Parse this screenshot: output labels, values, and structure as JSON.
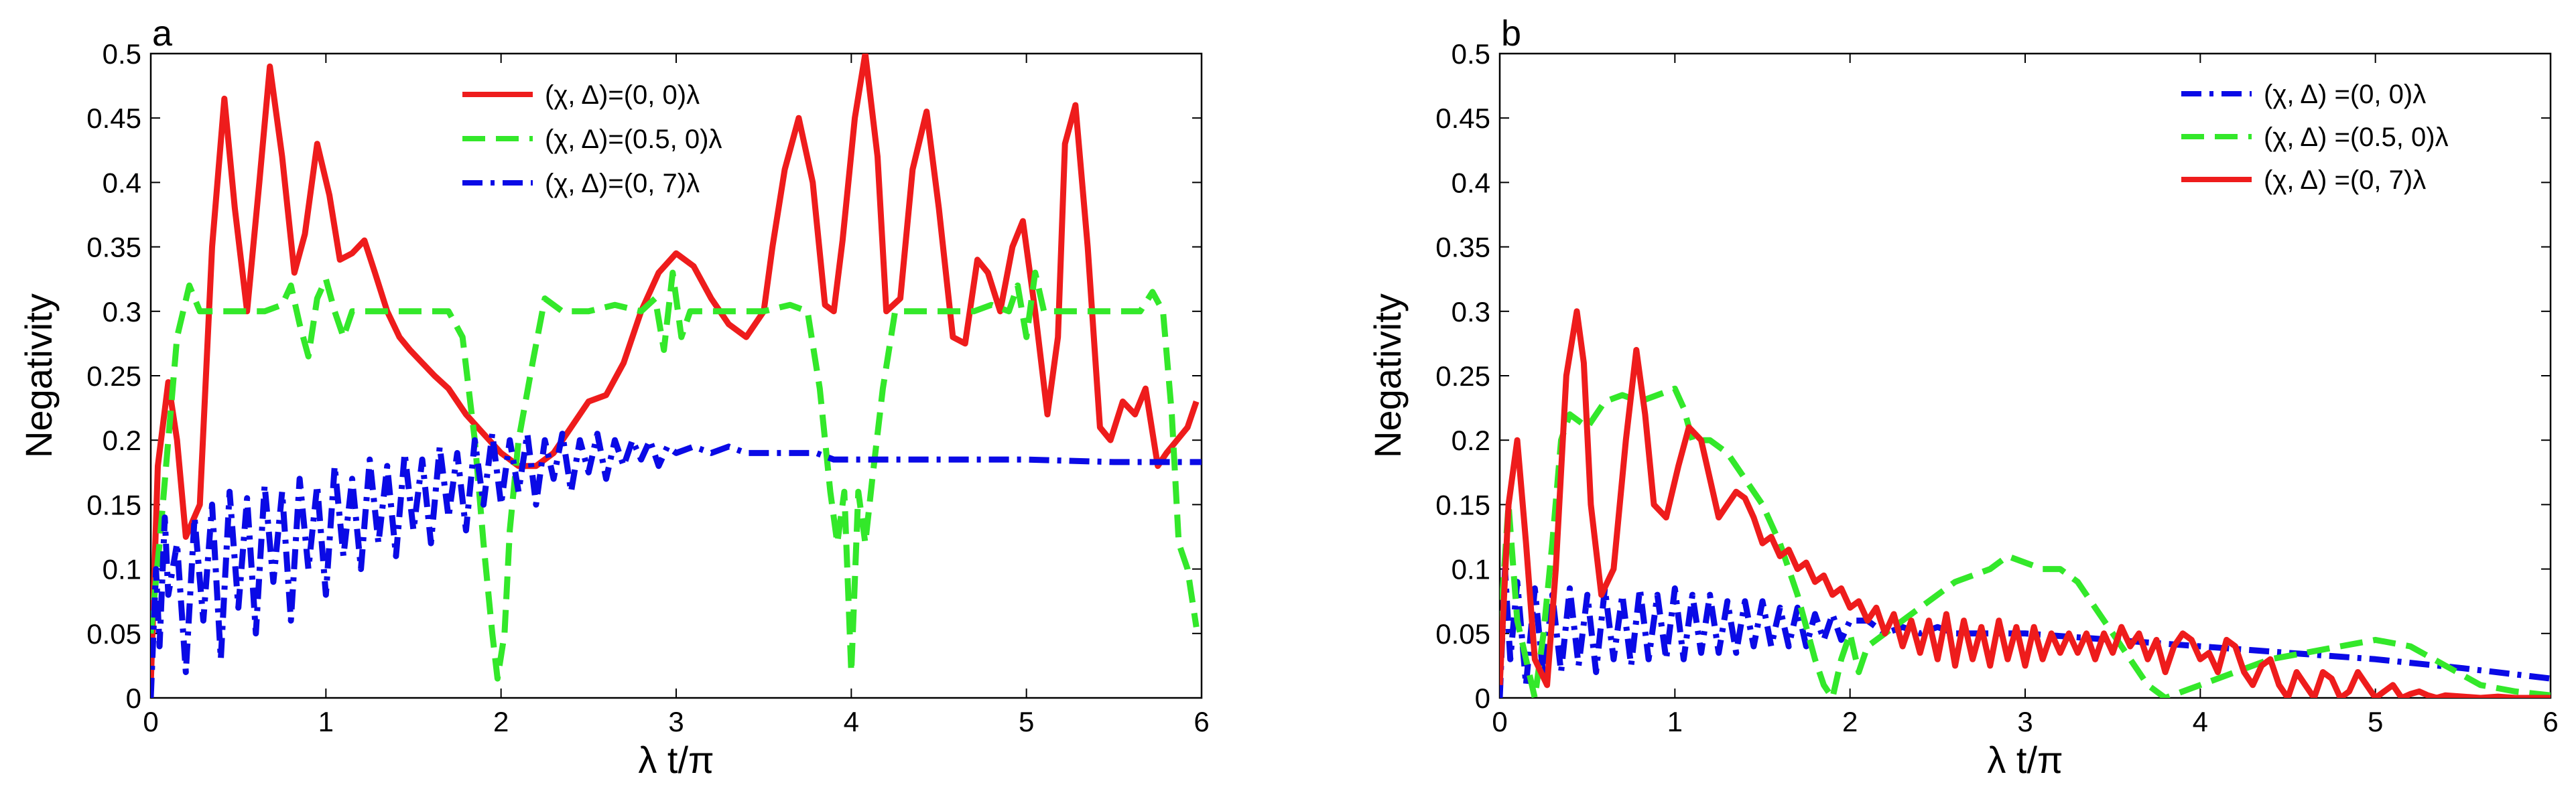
{
  "colors": {
    "red": "#ee1c1c",
    "green": "#33e82a",
    "blue": "#0a0ae6"
  },
  "chart_data": [
    {
      "type": "line",
      "panel_label": "a",
      "xlabel": "λ t/π",
      "ylabel": "Negativity",
      "xlim": [
        0,
        6
      ],
      "ylim": [
        0,
        0.5
      ],
      "xticks": [
        "0",
        "1",
        "2",
        "3",
        "4",
        "5",
        "6"
      ],
      "yticks": [
        "0",
        "0.05",
        "0.1",
        "0.15",
        "0.2",
        "0.25",
        "0.3",
        "0.35",
        "0.4",
        "0.45",
        "0.5"
      ],
      "legend_position": "top-center",
      "series": [
        {
          "name": "(χ, Δ)=(0, 0)λ",
          "color": "#ee1c1c",
          "style": "solid",
          "x": [
            0,
            0.04,
            0.1,
            0.15,
            0.2,
            0.28,
            0.35,
            0.42,
            0.48,
            0.55,
            0.62,
            0.68,
            0.75,
            0.82,
            0.88,
            0.95,
            1.02,
            1.08,
            1.15,
            1.22,
            1.28,
            1.35,
            1.42,
            1.48,
            1.55,
            1.62,
            1.7,
            1.8,
            1.9,
            2.0,
            2.1,
            2.2,
            2.3,
            2.4,
            2.5,
            2.6,
            2.7,
            2.8,
            2.9,
            3.0,
            3.1,
            3.2,
            3.3,
            3.4,
            3.5,
            3.55,
            3.62,
            3.7,
            3.78,
            3.85,
            3.9,
            3.95,
            4.02,
            4.08,
            4.15,
            4.2,
            4.28,
            4.35,
            4.43,
            4.5,
            4.58,
            4.65,
            4.72,
            4.78,
            4.85,
            4.92,
            4.98,
            5.05,
            5.12,
            5.18,
            5.22,
            5.28,
            5.35,
            5.42,
            5.48,
            5.55,
            5.62,
            5.68,
            5.75,
            5.8,
            5.86,
            5.92,
            5.97
          ],
          "y": [
            0.01,
            0.18,
            0.245,
            0.2,
            0.125,
            0.15,
            0.35,
            0.465,
            0.38,
            0.3,
            0.4,
            0.49,
            0.42,
            0.33,
            0.36,
            0.43,
            0.39,
            0.34,
            0.345,
            0.355,
            0.33,
            0.3,
            0.28,
            0.27,
            0.26,
            0.25,
            0.24,
            0.22,
            0.205,
            0.19,
            0.18,
            0.18,
            0.19,
            0.21,
            0.23,
            0.235,
            0.26,
            0.3,
            0.33,
            0.345,
            0.335,
            0.31,
            0.29,
            0.28,
            0.3,
            0.35,
            0.41,
            0.45,
            0.4,
            0.305,
            0.3,
            0.355,
            0.45,
            0.5,
            0.42,
            0.3,
            0.31,
            0.41,
            0.455,
            0.38,
            0.28,
            0.275,
            0.34,
            0.33,
            0.3,
            0.35,
            0.37,
            0.3,
            0.22,
            0.28,
            0.43,
            0.46,
            0.35,
            0.21,
            0.2,
            0.23,
            0.22,
            0.24,
            0.18,
            0.19,
            0.2,
            0.21,
            0.23
          ]
        },
        {
          "name": "(χ, Δ)=(0.5, 0)λ",
          "color": "#33e82a",
          "style": "dashed",
          "x": [
            0,
            0.05,
            0.1,
            0.15,
            0.22,
            0.28,
            0.35,
            0.45,
            0.55,
            0.65,
            0.75,
            0.8,
            0.85,
            0.9,
            0.95,
            1.0,
            1.05,
            1.1,
            1.15,
            1.2,
            1.3,
            1.4,
            1.5,
            1.6,
            1.7,
            1.78,
            1.85,
            1.9,
            1.95,
            1.98,
            2.02,
            2.05,
            2.1,
            2.18,
            2.25,
            2.35,
            2.5,
            2.65,
            2.8,
            2.88,
            2.93,
            2.98,
            3.03,
            3.08,
            3.15,
            3.3,
            3.5,
            3.65,
            3.75,
            3.82,
            3.88,
            3.92,
            3.96,
            4.0,
            4.04,
            4.08,
            4.12,
            4.18,
            4.25,
            4.35,
            4.5,
            4.6,
            4.7,
            4.8,
            4.9,
            4.95,
            5.0,
            5.05,
            5.1,
            5.15,
            5.25,
            5.4,
            5.55,
            5.65,
            5.72,
            5.78,
            5.83,
            5.87,
            5.92,
            5.97
          ],
          "y": [
            0.05,
            0.12,
            0.2,
            0.28,
            0.32,
            0.3,
            0.3,
            0.3,
            0.3,
            0.3,
            0.305,
            0.32,
            0.29,
            0.265,
            0.31,
            0.325,
            0.3,
            0.28,
            0.3,
            0.3,
            0.3,
            0.3,
            0.3,
            0.3,
            0.3,
            0.28,
            0.2,
            0.12,
            0.05,
            0.015,
            0.05,
            0.13,
            0.2,
            0.26,
            0.31,
            0.3,
            0.3,
            0.305,
            0.3,
            0.31,
            0.27,
            0.33,
            0.28,
            0.3,
            0.3,
            0.3,
            0.3,
            0.305,
            0.3,
            0.24,
            0.16,
            0.12,
            0.16,
            0.02,
            0.16,
            0.12,
            0.17,
            0.24,
            0.3,
            0.3,
            0.3,
            0.3,
            0.3,
            0.305,
            0.3,
            0.32,
            0.28,
            0.33,
            0.3,
            0.3,
            0.3,
            0.3,
            0.3,
            0.3,
            0.315,
            0.3,
            0.22,
            0.12,
            0.1,
            0.055
          ]
        },
        {
          "name": "(χ, Δ)=(0, 7)λ",
          "color": "#0a0ae6",
          "style": "dashdot",
          "x": [
            0,
            0.03,
            0.05,
            0.08,
            0.1,
            0.15,
            0.2,
            0.25,
            0.3,
            0.35,
            0.4,
            0.45,
            0.5,
            0.55,
            0.6,
            0.65,
            0.7,
            0.75,
            0.8,
            0.85,
            0.9,
            0.95,
            1.0,
            1.05,
            1.1,
            1.15,
            1.2,
            1.25,
            1.3,
            1.35,
            1.4,
            1.45,
            1.5,
            1.55,
            1.6,
            1.65,
            1.7,
            1.75,
            1.8,
            1.85,
            1.9,
            1.95,
            2.0,
            2.05,
            2.1,
            2.15,
            2.2,
            2.25,
            2.3,
            2.35,
            2.4,
            2.45,
            2.5,
            2.55,
            2.6,
            2.65,
            2.7,
            2.75,
            2.8,
            2.85,
            2.9,
            2.95,
            3.0,
            3.1,
            3.2,
            3.3,
            3.4,
            3.5,
            3.6,
            3.7,
            3.8,
            3.9,
            4.0,
            4.2,
            4.4,
            4.6,
            4.8,
            5.0,
            5.5,
            6.0
          ],
          "y": [
            0.0,
            0.1,
            0.04,
            0.14,
            0.08,
            0.12,
            0.02,
            0.14,
            0.06,
            0.15,
            0.03,
            0.16,
            0.07,
            0.155,
            0.05,
            0.165,
            0.09,
            0.16,
            0.06,
            0.17,
            0.1,
            0.165,
            0.08,
            0.18,
            0.11,
            0.17,
            0.1,
            0.185,
            0.12,
            0.18,
            0.11,
            0.19,
            0.13,
            0.185,
            0.12,
            0.195,
            0.14,
            0.19,
            0.13,
            0.2,
            0.15,
            0.205,
            0.15,
            0.2,
            0.16,
            0.205,
            0.15,
            0.2,
            0.17,
            0.205,
            0.16,
            0.2,
            0.175,
            0.205,
            0.17,
            0.2,
            0.18,
            0.2,
            0.185,
            0.2,
            0.18,
            0.195,
            0.19,
            0.195,
            0.19,
            0.195,
            0.19,
            0.19,
            0.19,
            0.19,
            0.19,
            0.185,
            0.185,
            0.185,
            0.185,
            0.185,
            0.185,
            0.185,
            0.183,
            0.183
          ]
        }
      ]
    },
    {
      "type": "line",
      "panel_label": "b",
      "xlabel": "λ t/π",
      "ylabel": "Negativity",
      "xlim": [
        0,
        6
      ],
      "ylim": [
        0,
        0.5
      ],
      "xticks": [
        "0",
        "1",
        "2",
        "3",
        "4",
        "5",
        "6"
      ],
      "yticks": [
        "0",
        "0.05",
        "0.1",
        "0.15",
        "0.2",
        "0.25",
        "0.3",
        "0.35",
        "0.4",
        "0.45",
        "0.5"
      ],
      "legend_position": "top-right",
      "series": [
        {
          "name": "(χ, Δ) =(0, 0)λ",
          "color": "#0a0ae6",
          "style": "dashdot",
          "x": [
            0,
            0.03,
            0.06,
            0.1,
            0.15,
            0.2,
            0.25,
            0.3,
            0.35,
            0.4,
            0.45,
            0.5,
            0.55,
            0.6,
            0.65,
            0.7,
            0.75,
            0.8,
            0.85,
            0.9,
            0.95,
            1.0,
            1.05,
            1.1,
            1.15,
            1.2,
            1.25,
            1.3,
            1.35,
            1.4,
            1.45,
            1.5,
            1.55,
            1.6,
            1.65,
            1.7,
            1.75,
            1.8,
            1.85,
            1.9,
            1.95,
            2.0,
            2.1,
            2.2,
            2.3,
            2.4,
            2.5,
            2.6,
            2.8,
            3.0,
            3.5,
            4.0,
            4.5,
            5.0,
            5.5,
            6.0
          ],
          "y": [
            0.0,
            0.1,
            0.03,
            0.09,
            0.01,
            0.085,
            0.015,
            0.08,
            0.02,
            0.085,
            0.025,
            0.08,
            0.02,
            0.085,
            0.03,
            0.08,
            0.025,
            0.085,
            0.03,
            0.08,
            0.03,
            0.085,
            0.03,
            0.08,
            0.035,
            0.08,
            0.035,
            0.075,
            0.035,
            0.075,
            0.04,
            0.075,
            0.04,
            0.07,
            0.04,
            0.07,
            0.04,
            0.065,
            0.045,
            0.065,
            0.045,
            0.06,
            0.06,
            0.05,
            0.055,
            0.05,
            0.055,
            0.05,
            0.05,
            0.05,
            0.045,
            0.04,
            0.035,
            0.03,
            0.023,
            0.015
          ]
        },
        {
          "name": "(χ, Δ) =(0.5, 0)λ",
          "color": "#33e82a",
          "style": "dashed",
          "x": [
            0,
            0.05,
            0.1,
            0.15,
            0.2,
            0.25,
            0.3,
            0.35,
            0.4,
            0.5,
            0.6,
            0.7,
            0.8,
            0.9,
            1.0,
            1.05,
            1.1,
            1.2,
            1.3,
            1.4,
            1.5,
            1.6,
            1.7,
            1.8,
            1.85,
            1.9,
            1.95,
            2.0,
            2.05,
            2.1,
            2.2,
            2.4,
            2.6,
            2.8,
            2.9,
            3.0,
            3.1,
            3.2,
            3.3,
            3.4,
            3.5,
            3.6,
            3.7,
            3.8,
            3.9,
            4.0,
            4.2,
            4.4,
            4.6,
            4.8,
            5.0,
            5.2,
            5.4,
            5.6,
            5.8,
            6.0
          ],
          "y": [
            0.05,
            0.15,
            0.06,
            0.03,
            0.0,
            0.05,
            0.12,
            0.2,
            0.22,
            0.21,
            0.23,
            0.235,
            0.23,
            0.235,
            0.24,
            0.225,
            0.2,
            0.2,
            0.19,
            0.17,
            0.15,
            0.12,
            0.08,
            0.03,
            0.01,
            0.0,
            0.03,
            0.05,
            0.02,
            0.04,
            0.05,
            0.07,
            0.09,
            0.1,
            0.11,
            0.105,
            0.1,
            0.1,
            0.09,
            0.07,
            0.05,
            0.03,
            0.01,
            0.0,
            0.005,
            0.01,
            0.02,
            0.03,
            0.035,
            0.04,
            0.045,
            0.04,
            0.025,
            0.01,
            0.005,
            0.002
          ]
        },
        {
          "name": "(χ, Δ) =(0, 7)λ",
          "color": "#ee1c1c",
          "style": "solid",
          "x": [
            0,
            0.05,
            0.1,
            0.15,
            0.2,
            0.27,
            0.32,
            0.38,
            0.44,
            0.48,
            0.52,
            0.58,
            0.65,
            0.72,
            0.78,
            0.83,
            0.88,
            0.95,
            1.02,
            1.08,
            1.15,
            1.2,
            1.25,
            1.3,
            1.35,
            1.4,
            1.45,
            1.5,
            1.55,
            1.6,
            1.65,
            1.7,
            1.75,
            1.8,
            1.85,
            1.9,
            1.95,
            2.0,
            2.05,
            2.1,
            2.15,
            2.2,
            2.25,
            2.3,
            2.35,
            2.4,
            2.45,
            2.5,
            2.55,
            2.6,
            2.65,
            2.7,
            2.75,
            2.8,
            2.85,
            2.9,
            2.95,
            3.0,
            3.05,
            3.1,
            3.15,
            3.2,
            3.25,
            3.3,
            3.35,
            3.4,
            3.45,
            3.5,
            3.55,
            3.6,
            3.65,
            3.7,
            3.75,
            3.8,
            3.85,
            3.9,
            3.95,
            4.0,
            4.05,
            4.1,
            4.15,
            4.2,
            4.25,
            4.3,
            4.35,
            4.4,
            4.45,
            4.5,
            4.55,
            4.6,
            4.65,
            4.7,
            4.75,
            4.8,
            4.85,
            4.9,
            4.95,
            5.0,
            5.05,
            5.1,
            5.15,
            5.2,
            5.25,
            5.3,
            5.35,
            5.4,
            5.5,
            5.6,
            5.7,
            5.8,
            5.9,
            6.0
          ],
          "y": [
            0.01,
            0.15,
            0.2,
            0.12,
            0.03,
            0.01,
            0.1,
            0.25,
            0.3,
            0.26,
            0.15,
            0.08,
            0.1,
            0.2,
            0.27,
            0.22,
            0.15,
            0.14,
            0.18,
            0.21,
            0.2,
            0.17,
            0.14,
            0.15,
            0.16,
            0.155,
            0.14,
            0.12,
            0.125,
            0.11,
            0.115,
            0.1,
            0.105,
            0.09,
            0.095,
            0.08,
            0.085,
            0.07,
            0.075,
            0.06,
            0.07,
            0.05,
            0.065,
            0.04,
            0.06,
            0.035,
            0.06,
            0.03,
            0.065,
            0.025,
            0.06,
            0.03,
            0.055,
            0.025,
            0.06,
            0.03,
            0.055,
            0.025,
            0.055,
            0.03,
            0.05,
            0.035,
            0.05,
            0.035,
            0.05,
            0.03,
            0.05,
            0.035,
            0.055,
            0.04,
            0.05,
            0.03,
            0.045,
            0.02,
            0.04,
            0.05,
            0.045,
            0.03,
            0.035,
            0.02,
            0.045,
            0.04,
            0.02,
            0.01,
            0.025,
            0.03,
            0.01,
            0.0,
            0.02,
            0.01,
            0.0,
            0.02,
            0.015,
            0.0,
            0.005,
            0.02,
            0.01,
            0.0,
            0.005,
            0.01,
            0.0,
            0.003,
            0.005,
            0.002,
            0.0,
            0.002,
            0.001,
            0.0,
            0.001,
            0.0,
            0.0,
            0.0
          ]
        }
      ]
    }
  ]
}
